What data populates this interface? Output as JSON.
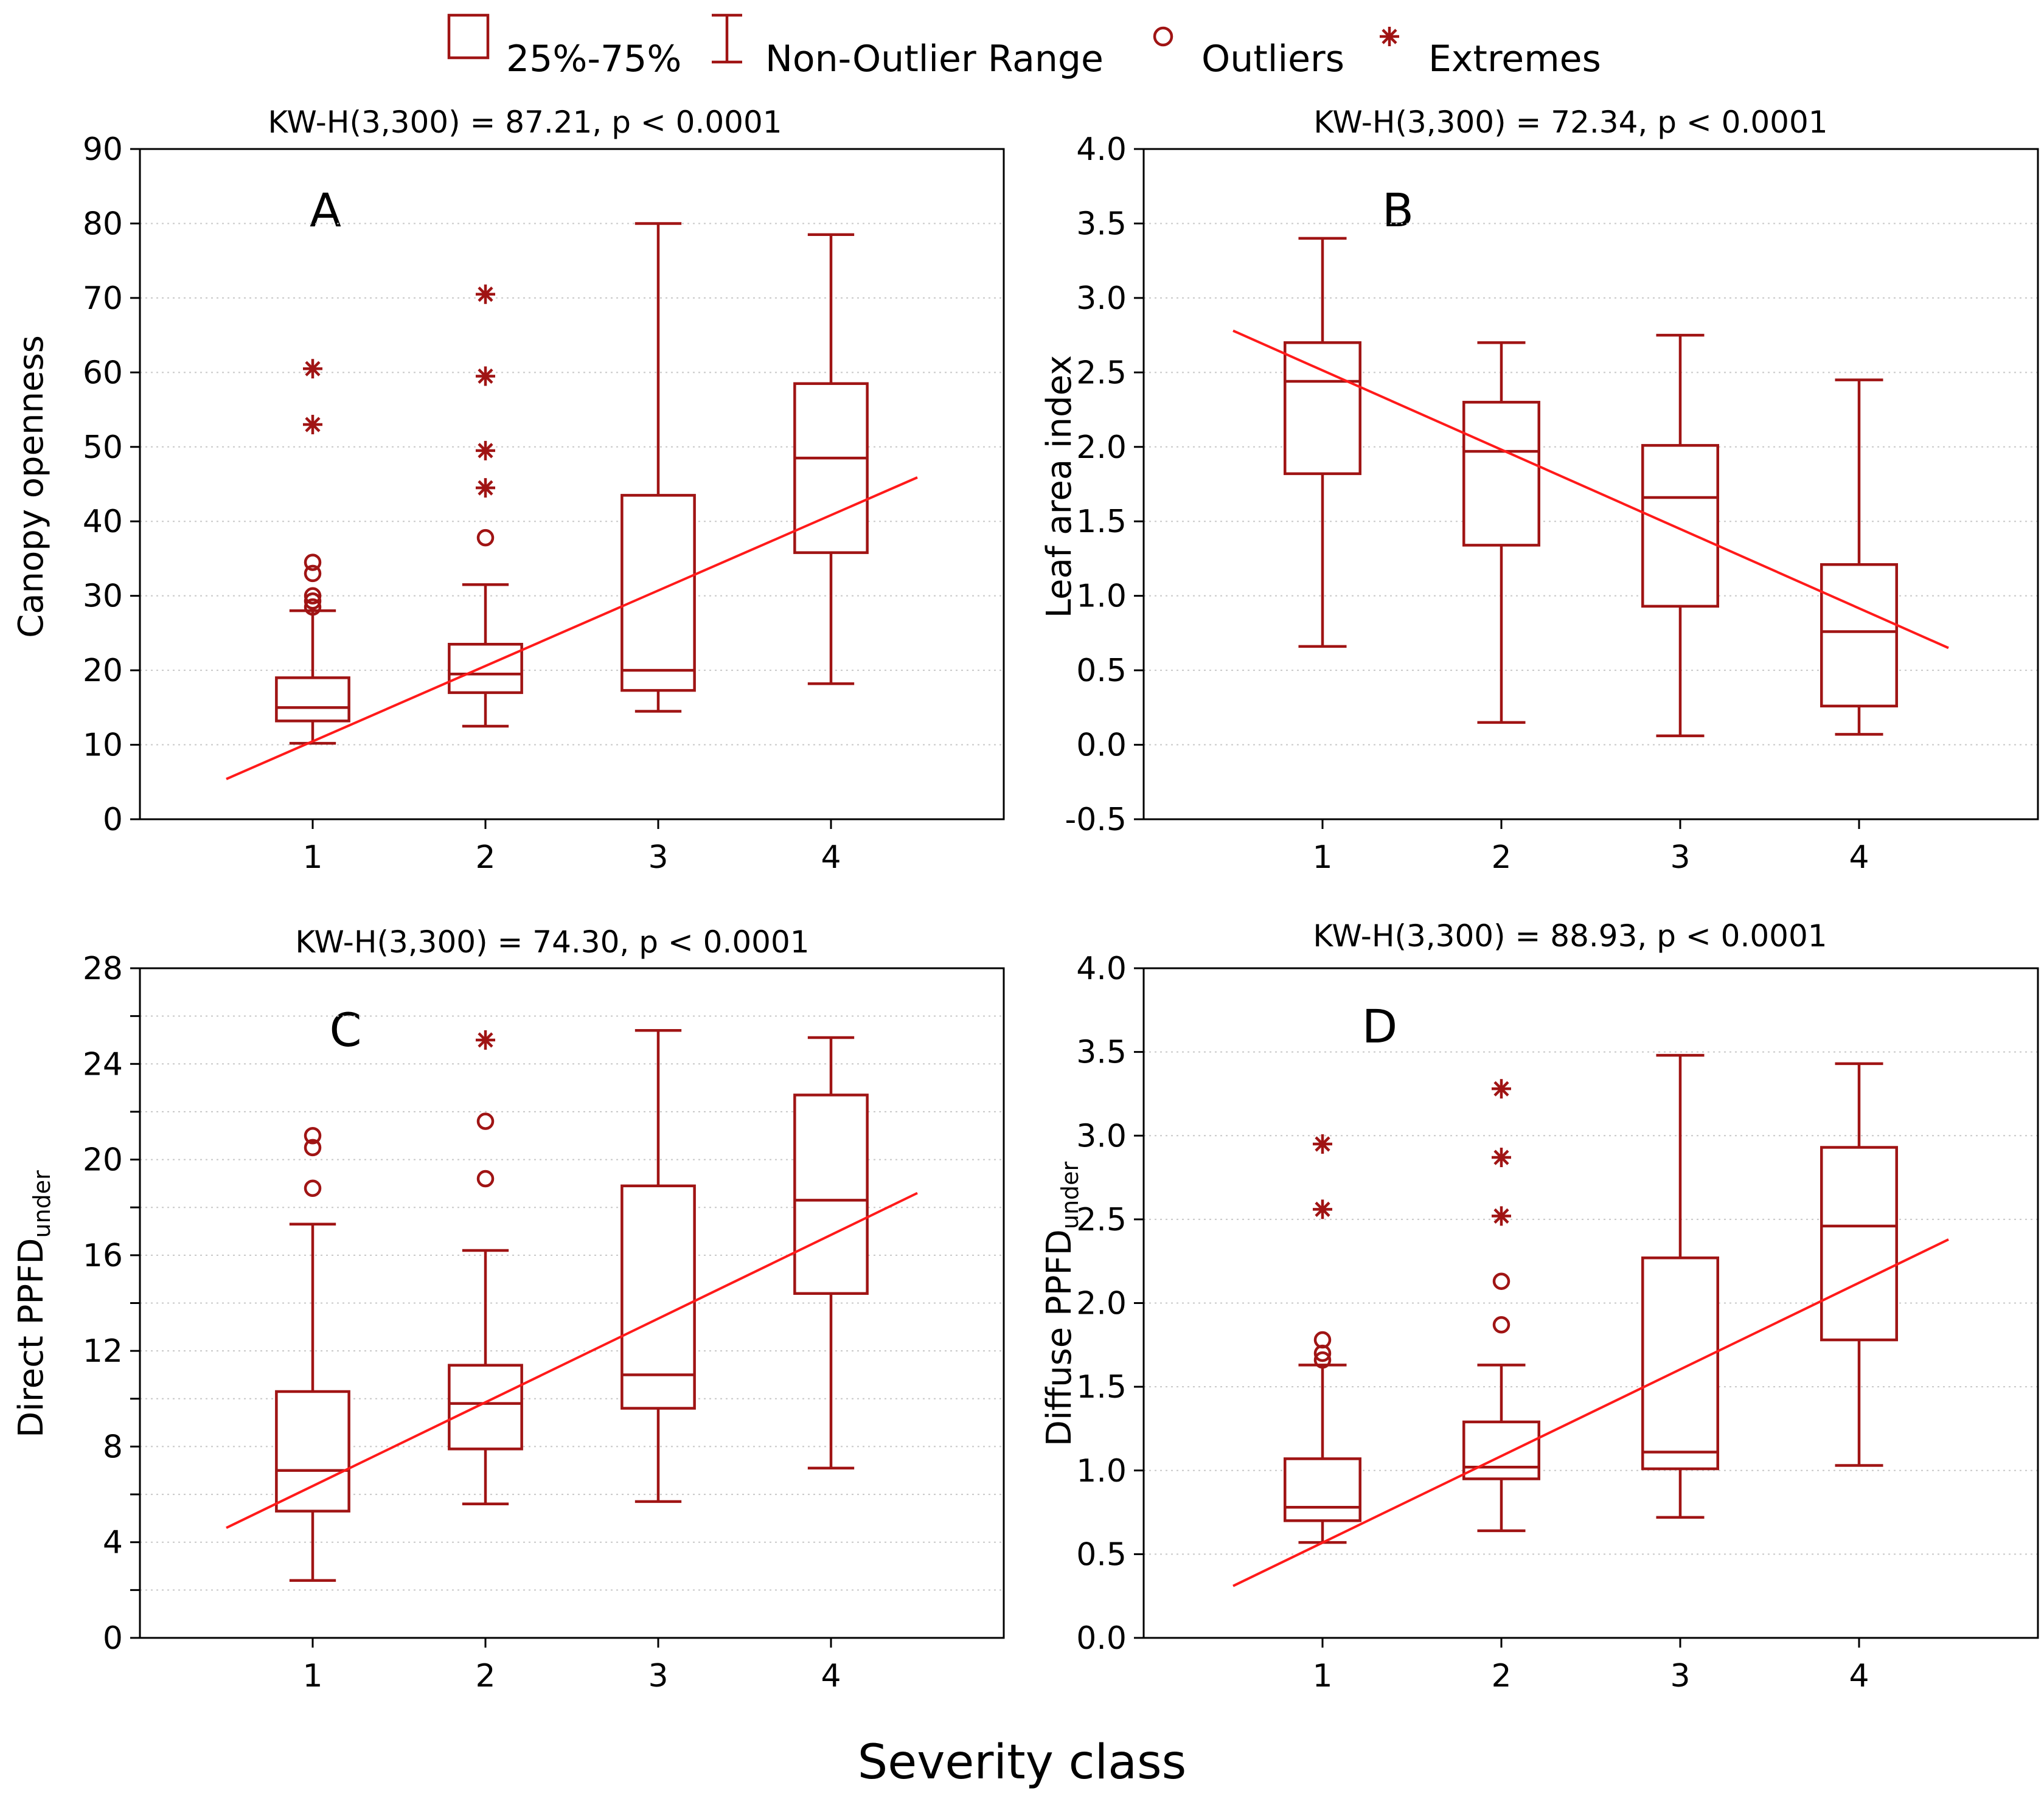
{
  "colors": {
    "box": "#a01414",
    "fit": "#ff1a1a",
    "frame": "#000000",
    "grid": "#c8c8c8"
  },
  "legend": {
    "items": [
      {
        "symbol": "box",
        "label": "25%-75%"
      },
      {
        "symbol": "whisker",
        "label": "Non-Outlier Range"
      },
      {
        "symbol": "circle",
        "label": "Outliers"
      },
      {
        "symbol": "star",
        "label": "Extremes"
      }
    ]
  },
  "xlabel": "Severity class",
  "chart_data": [
    {
      "type": "box",
      "letter": "A",
      "title": "KW-H(3,300) = 87.21, p < 0.0001",
      "ylabel": "Canopy openness",
      "ylabel_sub": "",
      "categories": [
        "1",
        "2",
        "3",
        "4"
      ],
      "ylim": [
        0,
        90
      ],
      "yticks": [
        0,
        10,
        20,
        30,
        40,
        50,
        60,
        70,
        80,
        90
      ],
      "ytick_labels": [
        "0",
        "10",
        "20",
        "30",
        "40",
        "50",
        "60",
        "70",
        "80",
        "90"
      ],
      "boxes": [
        {
          "q1": 13.2,
          "median": 15.0,
          "q3": 19.0,
          "whisker_low": 10.2,
          "whisker_high": 28.0,
          "outliers": [
            28.5,
            29.3,
            30.0,
            33.0,
            34.5
          ],
          "extremes": [
            53.0,
            60.5
          ]
        },
        {
          "q1": 17.0,
          "median": 19.5,
          "q3": 23.5,
          "whisker_low": 12.5,
          "whisker_high": 31.5,
          "outliers": [
            37.8
          ],
          "extremes": [
            44.5,
            49.5,
            59.5,
            70.5
          ]
        },
        {
          "q1": 17.3,
          "median": 20.0,
          "q3": 43.5,
          "whisker_low": 14.5,
          "whisker_high": 80.0,
          "outliers": [],
          "extremes": []
        },
        {
          "q1": 35.8,
          "median": 48.5,
          "q3": 58.5,
          "whisker_low": 18.2,
          "whisker_high": 78.5,
          "outliers": [],
          "extremes": []
        }
      ],
      "fit": {
        "x": [
          0.5,
          4.5
        ],
        "y": [
          5.4,
          45.9
        ]
      }
    },
    {
      "type": "box",
      "letter": "B",
      "title": "KW-H(3,300) = 72.34, p < 0.0001",
      "ylabel": "Leaf area index",
      "ylabel_sub": "",
      "categories": [
        "1",
        "2",
        "3",
        "4"
      ],
      "ylim": [
        -0.5,
        4.0
      ],
      "yticks": [
        -0.5,
        0.0,
        0.5,
        1.0,
        1.5,
        2.0,
        2.5,
        3.0,
        3.5,
        4.0
      ],
      "ytick_labels": [
        "-0.5",
        "0.0",
        "0.5",
        "1.0",
        "1.5",
        "2.0",
        "2.5",
        "3.0",
        "3.5",
        "4.0"
      ],
      "boxes": [
        {
          "q1": 1.82,
          "median": 2.44,
          "q3": 2.7,
          "whisker_low": 0.66,
          "whisker_high": 3.4,
          "outliers": [],
          "extremes": []
        },
        {
          "q1": 1.34,
          "median": 1.97,
          "q3": 2.3,
          "whisker_low": 0.15,
          "whisker_high": 2.7,
          "outliers": [],
          "extremes": []
        },
        {
          "q1": 0.93,
          "median": 1.66,
          "q3": 2.01,
          "whisker_low": 0.06,
          "whisker_high": 2.75,
          "outliers": [],
          "extremes": []
        },
        {
          "q1": 0.26,
          "median": 0.76,
          "q3": 1.21,
          "whisker_low": 0.07,
          "whisker_high": 2.45,
          "outliers": [],
          "extremes": []
        }
      ],
      "fit": {
        "x": [
          0.5,
          4.5
        ],
        "y": [
          2.78,
          0.65
        ]
      }
    },
    {
      "type": "box",
      "letter": "C",
      "title": "KW-H(3,300) = 74.30, p < 0.0001",
      "ylabel": "Direct PPFD",
      "ylabel_sub": "under",
      "categories": [
        "1",
        "2",
        "3",
        "4"
      ],
      "ylim": [
        0,
        28
      ],
      "yticks": [
        0,
        2,
        4,
        6,
        8,
        10,
        12,
        14,
        16,
        18,
        20,
        22,
        24,
        26,
        28
      ],
      "ytick_labels": [
        "0",
        "",
        "4",
        "",
        "8",
        "",
        "12",
        "",
        "16",
        "",
        "20",
        "",
        "24",
        "",
        "28"
      ],
      "boxes": [
        {
          "q1": 5.3,
          "median": 7.0,
          "q3": 10.3,
          "whisker_low": 2.4,
          "whisker_high": 17.3,
          "outliers": [
            18.8,
            20.5,
            21.0
          ],
          "extremes": []
        },
        {
          "q1": 7.9,
          "median": 9.8,
          "q3": 11.4,
          "whisker_low": 5.6,
          "whisker_high": 16.2,
          "outliers": [
            19.2,
            21.6
          ],
          "extremes": [
            25.0
          ]
        },
        {
          "q1": 9.6,
          "median": 11.0,
          "q3": 18.9,
          "whisker_low": 5.7,
          "whisker_high": 25.4,
          "outliers": [],
          "extremes": []
        },
        {
          "q1": 14.4,
          "median": 18.3,
          "q3": 22.7,
          "whisker_low": 7.1,
          "whisker_high": 25.1,
          "outliers": [],
          "extremes": []
        }
      ],
      "fit": {
        "x": [
          0.5,
          4.5
        ],
        "y": [
          4.6,
          18.6
        ]
      }
    },
    {
      "type": "box",
      "letter": "D",
      "title": "KW-H(3,300) = 88.93, p < 0.0001",
      "ylabel": "Diffuse PPFD",
      "ylabel_sub": "under",
      "categories": [
        "1",
        "2",
        "3",
        "4"
      ],
      "ylim": [
        0.0,
        4.0
      ],
      "yticks": [
        0.0,
        0.5,
        1.0,
        1.5,
        2.0,
        2.5,
        3.0,
        3.5,
        4.0
      ],
      "ytick_labels": [
        "0.0",
        "0.5",
        "1.0",
        "1.5",
        "2.0",
        "2.5",
        "3.0",
        "3.5",
        "4.0"
      ],
      "boxes": [
        {
          "q1": 0.7,
          "median": 0.78,
          "q3": 1.07,
          "whisker_low": 0.57,
          "whisker_high": 1.63,
          "outliers": [
            1.66,
            1.7,
            1.78
          ],
          "extremes": [
            2.56,
            2.95
          ]
        },
        {
          "q1": 0.95,
          "median": 1.02,
          "q3": 1.29,
          "whisker_low": 0.64,
          "whisker_high": 1.63,
          "outliers": [
            1.87,
            2.13
          ],
          "extremes": [
            2.52,
            2.87,
            3.28
          ]
        },
        {
          "q1": 1.01,
          "median": 1.11,
          "q3": 2.27,
          "whisker_low": 0.72,
          "whisker_high": 3.48,
          "outliers": [],
          "extremes": []
        },
        {
          "q1": 1.78,
          "median": 2.46,
          "q3": 2.93,
          "whisker_low": 1.03,
          "whisker_high": 3.43,
          "outliers": [],
          "extremes": []
        }
      ],
      "fit": {
        "x": [
          0.5,
          4.5
        ],
        "y": [
          0.31,
          2.38
        ]
      }
    }
  ]
}
